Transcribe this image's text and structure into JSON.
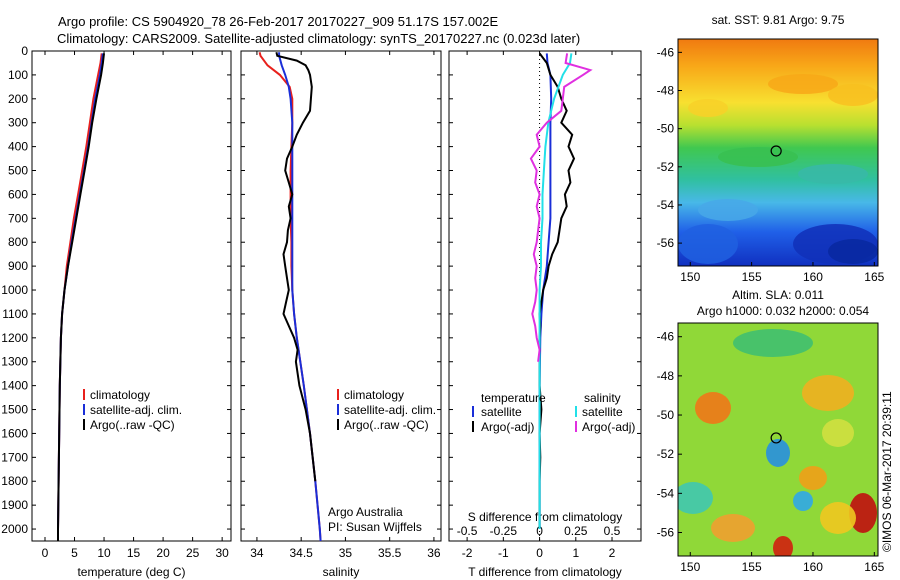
{
  "header": {
    "line1": "Argo profile: CS 5904920_78 26-Feb-2017 20170227_909 51.17S 157.002E",
    "line2": "Climatology: CARS2009. Satellite-adjusted climatology: synTS_20170227.nc (0.023d later)"
  },
  "colors": {
    "climatology": "#e8201c",
    "satellite": "#1a2ed8",
    "argo": "#000000",
    "salinity_sat": "#22e0e8",
    "salinity_argo": "#e030e0"
  },
  "depth_ticks": [
    "0",
    "100",
    "200",
    "300",
    "400",
    "500",
    "600",
    "700",
    "800",
    "900",
    "1000",
    "1100",
    "1200",
    "1300",
    "1400",
    "1500",
    "1600",
    "1700",
    "1800",
    "1900",
    "2000"
  ],
  "chart_data": [
    {
      "type": "line",
      "id": "temperature",
      "xlabel": "temperature (deg C)",
      "xticks": [
        "0",
        "5",
        "10",
        "15",
        "20",
        "25",
        "30"
      ],
      "xlim": [
        -2.2,
        31.5
      ],
      "ylim": [
        0,
        2050
      ],
      "legend": [
        "climatology",
        "satellite-adj. clim.",
        "Argo(..raw -QC)"
      ],
      "series": [
        {
          "name": "climatology",
          "depth": [
            10,
            50,
            100,
            200,
            300,
            400,
            500,
            600,
            700,
            800,
            900,
            1000,
            1100,
            1200,
            1400,
            1600,
            1800,
            2000,
            2050
          ],
          "values": [
            9.6,
            9.4,
            9.0,
            8.2,
            7.6,
            7.0,
            6.3,
            5.6,
            4.9,
            4.3,
            3.7,
            3.3,
            2.9,
            2.7,
            2.5,
            2.4,
            2.3,
            2.2,
            2.2
          ]
        },
        {
          "name": "satellite-adj. clim.",
          "depth": [
            10,
            50,
            100,
            200,
            300,
            400,
            500,
            600,
            700,
            800,
            900,
            1000,
            1100,
            1200,
            1400,
            1600,
            1800,
            2000,
            2050
          ],
          "values": [
            9.8,
            9.6,
            9.3,
            8.5,
            7.9,
            7.3,
            6.6,
            5.9,
            5.2,
            4.5,
            3.9,
            3.3,
            2.9,
            2.7,
            2.5,
            2.4,
            2.3,
            2.2,
            2.2
          ]
        },
        {
          "name": "Argo(..raw -QC)",
          "depth": [
            10,
            50,
            100,
            200,
            300,
            400,
            500,
            600,
            700,
            800,
            900,
            1000,
            1100,
            1200,
            1400,
            1600,
            1800,
            2000,
            2050
          ],
          "values": [
            10.0,
            9.8,
            9.5,
            8.7,
            8.0,
            7.4,
            6.7,
            6.0,
            5.3,
            4.6,
            3.9,
            3.3,
            2.9,
            2.7,
            2.5,
            2.4,
            2.3,
            2.2,
            2.2
          ]
        }
      ]
    },
    {
      "type": "line",
      "id": "salinity",
      "xlabel": "salinity",
      "xticks": [
        "34",
        "34.5",
        "35",
        "35.5",
        "36"
      ],
      "xlim": [
        33.82,
        36.08
      ],
      "ylim": [
        0,
        2050
      ],
      "legend": [
        "climatology",
        "satellite-adj. clim.",
        "Argo(..raw -QC)"
      ],
      "annotation": [
        "Argo Australia",
        "PI: Susan Wijffels"
      ],
      "series": [
        {
          "name": "climatology",
          "depth": [
            5,
            20,
            60,
            100,
            150,
            200,
            300,
            400,
            500,
            600,
            700,
            800,
            900,
            1000,
            1100,
            1200,
            1400,
            1600,
            1800,
            2000,
            2050
          ],
          "values": [
            34.03,
            34.04,
            34.12,
            34.26,
            34.37,
            34.4,
            34.4,
            34.39,
            34.38,
            34.38,
            34.38,
            34.39,
            34.39,
            34.4,
            34.42,
            34.45,
            34.53,
            34.6,
            34.66,
            34.71,
            34.72
          ]
        },
        {
          "name": "satellite-adj. clim.",
          "depth": [
            5,
            20,
            60,
            100,
            150,
            200,
            300,
            400,
            500,
            600,
            700,
            800,
            900,
            1000,
            1100,
            1200,
            1400,
            1600,
            1800,
            2000,
            2050
          ],
          "values": [
            34.25,
            34.25,
            34.28,
            34.32,
            34.36,
            34.38,
            34.4,
            34.4,
            34.4,
            34.4,
            34.4,
            34.4,
            34.4,
            34.4,
            34.42,
            34.45,
            34.53,
            34.6,
            34.66,
            34.71,
            34.72
          ]
        },
        {
          "name": "Argo(..raw -QC)",
          "depth": [
            5,
            20,
            40,
            60,
            80,
            100,
            150,
            200,
            250,
            300,
            350,
            400,
            450,
            500,
            550,
            600,
            650,
            700,
            750,
            800,
            850,
            900,
            950,
            1000,
            1050,
            1100,
            1150,
            1200,
            1250,
            1300,
            1400,
            1500,
            1600,
            1800
          ],
          "values": [
            34.22,
            34.23,
            34.45,
            34.55,
            34.58,
            34.6,
            34.62,
            34.61,
            34.6,
            34.52,
            34.45,
            34.4,
            34.34,
            34.32,
            34.36,
            34.4,
            34.36,
            34.38,
            34.35,
            34.34,
            34.3,
            34.32,
            34.34,
            34.36,
            34.33,
            34.3,
            34.36,
            34.42,
            34.46,
            34.44,
            34.48,
            34.55,
            34.6,
            34.66
          ]
        }
      ]
    },
    {
      "type": "line",
      "id": "difference",
      "xlabel": "T difference from climatology",
      "xlabel_top": "S difference from climatology",
      "xticks": [
        "-2",
        "-1",
        "0",
        "1",
        "2"
      ],
      "xticks_top": [
        "-0.5",
        "-0.25",
        "0",
        "0.25",
        "0.5"
      ],
      "xlim": [
        -2.5,
        2.8
      ],
      "ylim": [
        0,
        2050
      ],
      "legend_titles": [
        "temperature",
        "salinity"
      ],
      "legend_left": [
        "satellite",
        "Argo(-adj)"
      ],
      "legend_right": [
        "satellite",
        "Argo(-adj)"
      ],
      "series": [
        {
          "name": "temperature satellite",
          "depth": [
            10,
            50,
            100,
            200,
            300,
            400,
            500,
            600,
            700,
            800,
            900,
            1000,
            1100,
            1200,
            1400,
            1600,
            1800,
            2000
          ],
          "values": [
            0.2,
            0.22,
            0.3,
            0.32,
            0.3,
            0.3,
            0.3,
            0.3,
            0.3,
            0.25,
            0.2,
            0.1,
            0.05,
            0.02,
            0.0,
            0.0,
            0.0,
            0.0
          ]
        },
        {
          "name": "temperature Argo(-adj)",
          "depth": [
            10,
            50,
            100,
            150,
            200,
            250,
            300,
            350,
            400,
            450,
            500,
            550,
            600,
            650,
            700,
            750,
            800,
            850,
            900,
            950,
            1000,
            1050,
            1100,
            1150,
            1200,
            1300,
            1400,
            1500,
            1600,
            1700,
            1800,
            1900,
            2000
          ],
          "values": [
            0.0,
            0.2,
            0.3,
            0.5,
            0.6,
            0.75,
            0.6,
            0.9,
            0.8,
            0.95,
            0.8,
            0.85,
            0.7,
            0.75,
            0.6,
            0.55,
            0.5,
            0.35,
            0.25,
            0.2,
            0.1,
            0.05,
            0.0,
            0.02,
            0.0,
            0.0,
            0.0,
            0.05,
            0.0,
            0.02,
            0.0,
            0.0,
            0.0
          ]
        },
        {
          "name": "salinity satellite",
          "depth": [
            10,
            50,
            100,
            200,
            300,
            400,
            500,
            600,
            700,
            800,
            900,
            1000,
            1100,
            1200,
            1400,
            1600,
            1800,
            2000
          ],
          "values": [
            0.22,
            0.21,
            0.16,
            0.1,
            0.06,
            0.04,
            0.03,
            0.02,
            0.02,
            0.01,
            0.01,
            0.0,
            0.0,
            0.0,
            0.0,
            0.0,
            0.0,
            0.0
          ]
        },
        {
          "name": "salinity Argo(-adj)",
          "depth": [
            10,
            50,
            80,
            100,
            150,
            200,
            250,
            300,
            350,
            400,
            450,
            500,
            550,
            600,
            650,
            700,
            750,
            800,
            850,
            900,
            950,
            1000,
            1050,
            1100,
            1150,
            1200,
            1250,
            1300
          ],
          "values": [
            0.19,
            0.18,
            0.35,
            0.3,
            0.17,
            0.16,
            0.15,
            0.05,
            -0.02,
            0.0,
            -0.06,
            -0.02,
            -0.03,
            0.0,
            -0.02,
            0.0,
            -0.01,
            -0.02,
            -0.04,
            -0.02,
            -0.03,
            -0.02,
            -0.03,
            -0.05,
            -0.03,
            -0.02,
            0.0,
            -0.01
          ]
        }
      ]
    },
    {
      "type": "heatmap",
      "id": "sst-map",
      "title": "sat. SST: 9.81 Argo: 9.75",
      "xticks": [
        "150",
        "155",
        "160",
        "165"
      ],
      "yticks": [
        "-46",
        "-48",
        "-50",
        "-52",
        "-54",
        "-56"
      ],
      "xlim": [
        149,
        165.3
      ],
      "ylim": [
        -57.2,
        -45.3
      ],
      "marker": {
        "lon": 157.0,
        "lat": -51.17
      }
    },
    {
      "type": "heatmap",
      "id": "sla-map",
      "title": "Altim. SLA: 0.011",
      "subtitle": "Argo h1000: 0.032 h2000: 0.054",
      "xticks": [
        "150",
        "155",
        "160",
        "165"
      ],
      "yticks": [
        "-46",
        "-48",
        "-50",
        "-52",
        "-54",
        "-56"
      ],
      "xlim": [
        149,
        165.3
      ],
      "ylim": [
        -57.2,
        -45.3
      ],
      "marker": {
        "lon": 157.0,
        "lat": -51.17
      }
    }
  ],
  "credit": "©IMOS 06-Mar-2017 20:39:11"
}
